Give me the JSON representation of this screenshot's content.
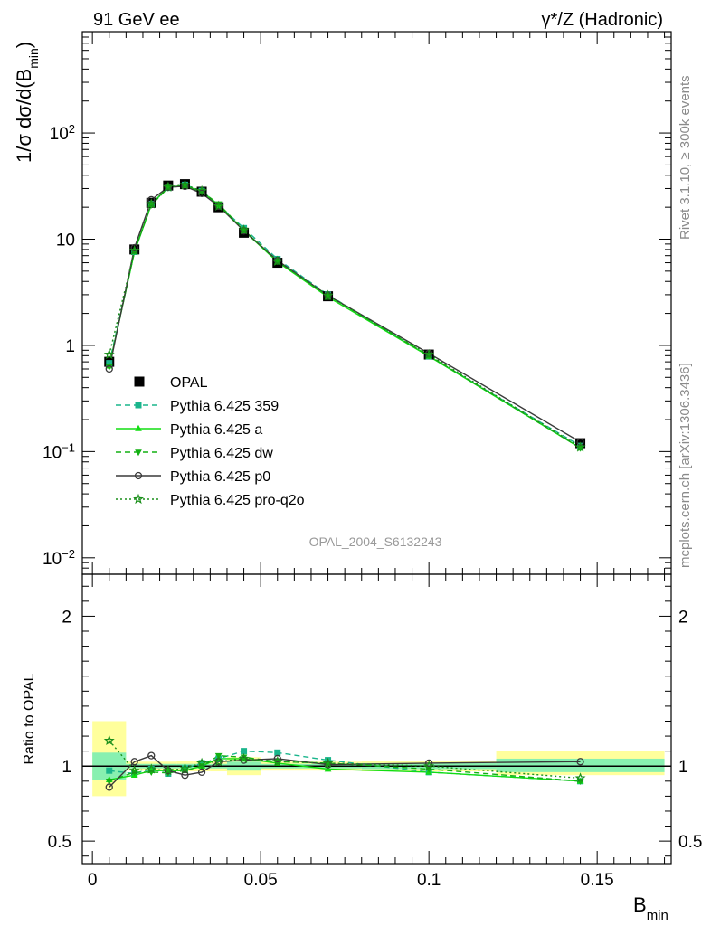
{
  "header": {
    "left": "91 GeV ee",
    "right": "γ*/Z (Hadronic)"
  },
  "side_text": {
    "rivet": "Rivet 3.1.10, ≥ 300k events",
    "mcplots": "mcplots.cern.ch [arXiv:1306.3436]"
  },
  "analysis_label": "OPAL_2004_S6132243",
  "chart_data": [
    {
      "type": "line",
      "panel": "main",
      "ylabel": "1/σ dσ/d(B_min)",
      "yscale": "log",
      "ylim": [
        0.007,
        900
      ],
      "xlim": [
        -0.003,
        0.172
      ],
      "yticks": [
        {
          "v": 0.01,
          "base": "10",
          "exp": "−2"
        },
        {
          "v": 0.1,
          "base": "10",
          "exp": "−1"
        },
        {
          "v": 1,
          "label": "1"
        },
        {
          "v": 10,
          "label": "10"
        },
        {
          "v": 100,
          "base": "10",
          "exp": "2"
        }
      ],
      "legend_position": "middle-left",
      "x": [
        0.005,
        0.0125,
        0.0175,
        0.0225,
        0.0275,
        0.0325,
        0.0375,
        0.045,
        0.055,
        0.07,
        0.1,
        0.145
      ],
      "reference": {
        "name": "OPAL",
        "values": [
          0.7,
          8.0,
          22.0,
          32.0,
          33.0,
          28.0,
          20.0,
          11.5,
          6.0,
          2.9,
          0.82,
          0.12
        ]
      },
      "series": [
        {
          "name": "Pythia 6.425 359",
          "color": "#1ab58c",
          "dash": "6,4",
          "marker": "square",
          "values": [
            0.68,
            7.6,
            21.5,
            30.5,
            32.5,
            28.5,
            21.0,
            12.7,
            6.5,
            3.0,
            0.79,
            0.113
          ]
        },
        {
          "name": "Pythia 6.425 a",
          "color": "#12dd12",
          "dash": "",
          "marker": "triangle-up",
          "values": [
            0.64,
            7.6,
            21.3,
            31.0,
            32.0,
            28.0,
            21.0,
            12.0,
            6.1,
            2.85,
            0.79,
            0.108
          ]
        },
        {
          "name": "Pythia 6.425 dw",
          "color": "#12b012",
          "dash": "6,4",
          "marker": "triangle-down",
          "values": [
            0.63,
            7.7,
            21.0,
            30.5,
            32.0,
            28.0,
            21.5,
            12.2,
            6.2,
            2.95,
            0.8,
            0.108
          ]
        },
        {
          "name": "Pythia 6.425 p0",
          "color": "#3a3a3a",
          "dash": "",
          "marker": "circle",
          "values": [
            0.6,
            8.3,
            23.5,
            31.0,
            31.5,
            27.0,
            20.5,
            12.0,
            6.3,
            2.95,
            0.84,
            0.123
          ]
        },
        {
          "name": "Pythia 6.425 pro-q2o",
          "color": "#1a8f1a",
          "dash": "2,3",
          "marker": "star",
          "values": [
            0.82,
            7.8,
            21.5,
            31.0,
            32.5,
            28.5,
            20.5,
            12.2,
            6.2,
            2.95,
            0.82,
            0.11
          ]
        }
      ]
    },
    {
      "type": "line",
      "panel": "ratio",
      "ylabel": "Ratio to OPAL",
      "xlabel": "B_min",
      "ylim": [
        0.35,
        2.28
      ],
      "xlim": [
        -0.003,
        0.172
      ],
      "xticks": [
        {
          "v": 0,
          "label": "0"
        },
        {
          "v": 0.05,
          "label": "0.05"
        },
        {
          "v": 0.1,
          "label": "0.1"
        },
        {
          "v": 0.15,
          "label": "0.15"
        }
      ],
      "yticks": [
        {
          "v": 0.5,
          "label": "0.5"
        },
        {
          "v": 1,
          "label": "1"
        },
        {
          "v": 2,
          "label": "2"
        }
      ],
      "x": [
        0.005,
        0.0125,
        0.0175,
        0.0225,
        0.0275,
        0.0325,
        0.0375,
        0.045,
        0.055,
        0.07,
        0.1,
        0.145
      ],
      "bands": [
        {
          "x0": 0.0,
          "x1": 0.01,
          "stat": [
            0.91,
            1.09
          ],
          "total": [
            0.8,
            1.3
          ]
        },
        {
          "x0": 0.01,
          "x1": 0.015,
          "stat": [
            0.985,
            1.015
          ],
          "total": [
            0.97,
            1.03
          ]
        },
        {
          "x0": 0.015,
          "x1": 0.02,
          "stat": [
            0.985,
            1.015
          ],
          "total": [
            0.97,
            1.03
          ]
        },
        {
          "x0": 0.02,
          "x1": 0.025,
          "stat": [
            0.985,
            1.015
          ],
          "total": [
            0.97,
            1.03
          ]
        },
        {
          "x0": 0.025,
          "x1": 0.03,
          "stat": [
            0.985,
            1.015
          ],
          "total": [
            0.965,
            1.035
          ]
        },
        {
          "x0": 0.03,
          "x1": 0.035,
          "stat": [
            0.985,
            1.015
          ],
          "total": [
            0.965,
            1.035
          ]
        },
        {
          "x0": 0.035,
          "x1": 0.04,
          "stat": [
            0.985,
            1.015
          ],
          "total": [
            0.965,
            1.035
          ]
        },
        {
          "x0": 0.04,
          "x1": 0.05,
          "stat": [
            0.97,
            1.03
          ],
          "total": [
            0.94,
            1.06
          ]
        },
        {
          "x0": 0.05,
          "x1": 0.06,
          "stat": [
            0.985,
            1.015
          ],
          "total": [
            0.97,
            1.03
          ]
        },
        {
          "x0": 0.06,
          "x1": 0.08,
          "stat": [
            0.985,
            1.015
          ],
          "total": [
            0.97,
            1.03
          ]
        },
        {
          "x0": 0.08,
          "x1": 0.12,
          "stat": [
            0.98,
            1.02
          ],
          "total": [
            0.965,
            1.035
          ]
        },
        {
          "x0": 0.12,
          "x1": 0.17,
          "stat": [
            0.96,
            1.05
          ],
          "total": [
            0.94,
            1.1
          ]
        }
      ],
      "series": [
        {
          "name": "Pythia 6.425 359",
          "color": "#1ab58c",
          "dash": "6,4",
          "marker": "square",
          "values": [
            0.97,
            0.95,
            0.98,
            0.95,
            0.985,
            1.02,
            1.05,
            1.1,
            1.09,
            1.04,
            0.96,
            0.9
          ]
        },
        {
          "name": "Pythia 6.425 a",
          "color": "#12dd12",
          "dash": "",
          "marker": "triangle-up",
          "values": [
            0.91,
            0.94,
            0.97,
            0.97,
            0.97,
            1.0,
            1.05,
            1.05,
            1.02,
            0.98,
            0.96,
            0.9
          ]
        },
        {
          "name": "Pythia 6.425 dw",
          "color": "#12b012",
          "dash": "6,4",
          "marker": "triangle-down",
          "values": [
            0.9,
            0.96,
            0.96,
            0.955,
            0.97,
            1.0,
            1.07,
            1.06,
            1.03,
            1.02,
            0.98,
            0.9
          ]
        },
        {
          "name": "Pythia 6.425 p0",
          "color": "#3a3a3a",
          "dash": "",
          "marker": "circle",
          "values": [
            0.86,
            1.03,
            1.07,
            0.97,
            0.94,
            0.96,
            1.03,
            1.04,
            1.05,
            1.01,
            1.02,
            1.03
          ]
        },
        {
          "name": "Pythia 6.425 pro-q2o",
          "color": "#1a8f1a",
          "dash": "2,3",
          "marker": "star",
          "values": [
            1.17,
            0.97,
            0.98,
            0.97,
            0.985,
            1.02,
            1.03,
            1.05,
            1.03,
            1.02,
            1.0,
            0.92
          ]
        }
      ]
    }
  ]
}
